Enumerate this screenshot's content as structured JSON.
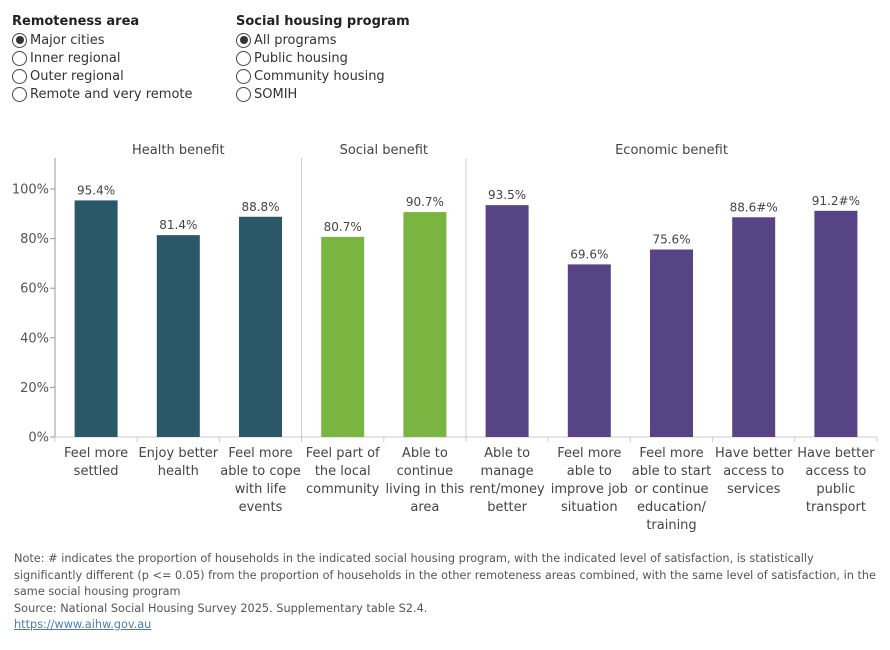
{
  "filters": {
    "remoteness": {
      "title": "Remoteness area",
      "options": [
        "Major cities",
        "Inner regional",
        "Outer regional",
        "Remote and very remote"
      ],
      "selected": 0
    },
    "program": {
      "title": "Social housing program",
      "options": [
        "All programs",
        "Public housing",
        "Community housing",
        "SOMIH"
      ],
      "selected": 0
    }
  },
  "colors": {
    "health": "#2a5868",
    "social": "#7ab542",
    "economic": "#574487"
  },
  "chart_data": {
    "type": "bar",
    "ylim": [
      0,
      100
    ],
    "yticks": [
      0,
      20,
      40,
      60,
      80,
      100
    ],
    "ytick_labels": [
      "0%",
      "20%",
      "40%",
      "60%",
      "80%",
      "100%"
    ],
    "panels": [
      {
        "name": "Health benefit",
        "color_key": "health",
        "bars": [
          {
            "category": [
              "Feel more",
              "settled"
            ],
            "value": 95.4,
            "label": "95.4%"
          },
          {
            "category": [
              "Enjoy better",
              "health"
            ],
            "value": 81.4,
            "label": "81.4%"
          },
          {
            "category": [
              "Feel more",
              "able to cope",
              "with life",
              "events"
            ],
            "value": 88.8,
            "label": "88.8%"
          }
        ]
      },
      {
        "name": "Social benefit",
        "color_key": "social",
        "bars": [
          {
            "category": [
              "Feel part of",
              "the local",
              "community"
            ],
            "value": 80.7,
            "label": "80.7%"
          },
          {
            "category": [
              "Able to",
              "continue",
              "living in this",
              "area"
            ],
            "value": 90.7,
            "label": "90.7%"
          }
        ]
      },
      {
        "name": "Economic benefit",
        "color_key": "economic",
        "bars": [
          {
            "category": [
              "Able to",
              "manage",
              "rent/money",
              "better"
            ],
            "value": 93.5,
            "label": "93.5%"
          },
          {
            "category": [
              "Feel more",
              "able to",
              "improve job",
              "situation"
            ],
            "value": 69.6,
            "label": "69.6%"
          },
          {
            "category": [
              "Feel more",
              "able to start",
              "or continue",
              "education/",
              "training"
            ],
            "value": 75.6,
            "label": "75.6%"
          },
          {
            "category": [
              "Have better",
              "access to",
              "services"
            ],
            "value": 88.6,
            "label": "88.6#%"
          },
          {
            "category": [
              "Have better",
              "access to",
              "public",
              "transport"
            ],
            "value": 91.2,
            "label": "91.2#%"
          }
        ]
      }
    ]
  },
  "note": {
    "text": "Note: # indicates the proportion of households in the indicated social housing program, with the indicated level of satisfaction, is statistically significantly different (p <= 0.05) from the proportion of households in the other remoteness areas combined, with the same level of satisfaction, in the same social housing program",
    "source": "Source: National Social Housing Survey 2025. Supplementary table S2.4.",
    "link": "https://www.aihw.gov.au"
  }
}
